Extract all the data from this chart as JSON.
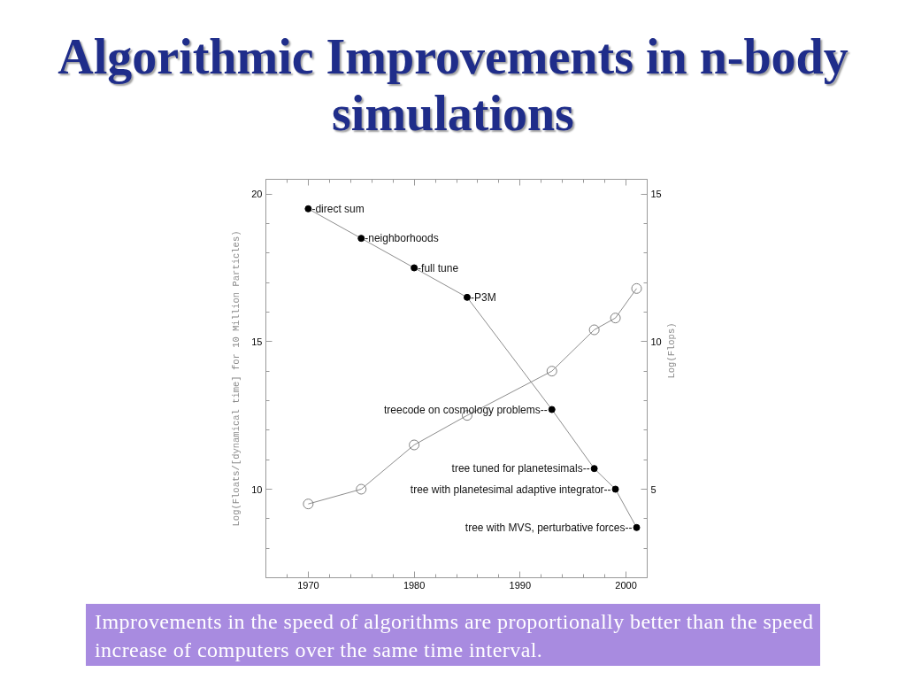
{
  "chart_data": {
    "type": "line",
    "title": "Algorithmic Improvements in n-body simulations",
    "ylabel": "Log(Floats/[dynamical time] for 10 Million Particles)",
    "y2label": "Log(Flops)",
    "xlim": [
      1966,
      2002
    ],
    "xticks": [
      {
        "value": 1968,
        "label": null
      },
      1970,
      {
        "value": 1972,
        "label": null
      },
      {
        "value": 1974,
        "label": null
      },
      {
        "value": 1976,
        "label": null
      },
      {
        "value": 1978,
        "label": null
      },
      1980,
      {
        "value": 1982,
        "label": null
      },
      {
        "value": 1984,
        "label": null
      },
      {
        "value": 1986,
        "label": null
      },
      {
        "value": 1988,
        "label": null
      },
      1990,
      {
        "value": 1992,
        "label": null
      },
      {
        "value": 1994,
        "label": null
      },
      {
        "value": 1996,
        "label": null
      },
      {
        "value": 1998,
        "label": null
      },
      2000
    ],
    "ylim": [
      7,
      20.5
    ],
    "yticks": [
      {
        "value": 8,
        "label": null
      },
      {
        "value": 9,
        "label": null
      },
      10,
      {
        "value": 11,
        "label": null
      },
      {
        "value": 12,
        "label": null
      },
      {
        "value": 13,
        "label": null
      },
      {
        "value": 14,
        "label": null
      },
      15,
      {
        "value": 16,
        "label": null
      },
      {
        "value": 17,
        "label": null
      },
      {
        "value": 18,
        "label": null
      },
      {
        "value": 19,
        "label": null
      },
      20
    ],
    "y2lim": [
      2,
      15.5
    ],
    "y2ticks": [
      {
        "value": 3,
        "label": null
      },
      {
        "value": 4,
        "label": null
      },
      5,
      {
        "value": 6,
        "label": null
      },
      {
        "value": 7,
        "label": null
      },
      {
        "value": 8,
        "label": null
      },
      {
        "value": 9,
        "label": null
      },
      10,
      {
        "value": 11,
        "label": null
      },
      {
        "value": 12,
        "label": null
      },
      {
        "value": 13,
        "label": null
      },
      {
        "value": 14,
        "label": null
      },
      15
    ],
    "marker": "circle",
    "series": [
      {
        "color": "#000000",
        "x": [
          1970,
          1975,
          1980,
          1985,
          1993,
          1997,
          1999,
          2001
        ],
        "values": [
          19.5,
          18.5,
          17.5,
          16.5,
          12.7,
          10.7,
          10.0,
          8.7
        ]
      },
      {
        "color": "#808080",
        "axis": "y2",
        "x": [
          1970,
          1975,
          1980,
          1985,
          1993,
          1997,
          1999,
          2001
        ],
        "values": [
          4.5,
          5.0,
          6.5,
          7.5,
          9.0,
          10.4,
          10.8,
          11.8
        ]
      }
    ],
    "annotations": [
      {
        "text": "-direct sum",
        "x": 1970,
        "y": 19.5
      },
      {
        "text": "-neighborhoods",
        "x": 1975,
        "y": 18.5
      },
      {
        "text": "-full tune",
        "x": 1980,
        "y": 17.5
      },
      {
        "text": "-P3M",
        "x": 1985,
        "y": 16.5
      },
      {
        "text": "treecode on cosmology problems--",
        "x": 1993,
        "y": 12.7
      },
      {
        "text": "tree tuned for planetesimals--",
        "x": 1997,
        "y": 10.7
      },
      {
        "text": "tree with planetesimal adaptive integrator--",
        "x": 1999,
        "y": 10.0
      },
      {
        "text": "tree with MVS, perturbative forces--",
        "x": 2001,
        "y": 8.7
      },
      "Improvements in the speed of algorithms are proportionally better than the speed increase of computers over the same time interval."
    ]
  }
}
